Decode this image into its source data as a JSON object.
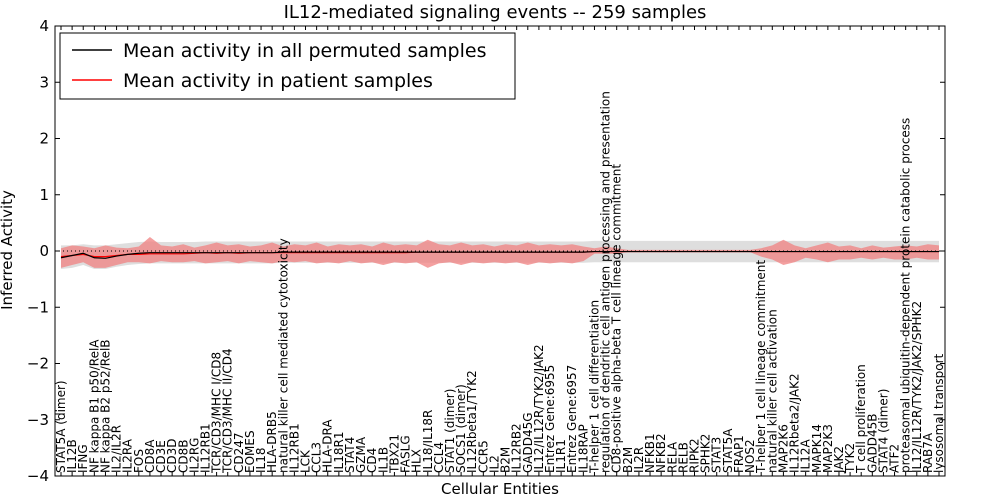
{
  "chart_data": {
    "type": "line",
    "title": "IL12-mediated signaling events -- 259 samples",
    "xlabel": "Cellular Entities",
    "ylabel": "Inferred Activity",
    "ylim": [
      -4,
      4
    ],
    "yticks": [
      -4,
      -3,
      -2,
      -1,
      0,
      1,
      2,
      3,
      4
    ],
    "ytick_labels": [
      "−4",
      "−3",
      "−2",
      "−1",
      "0",
      "1",
      "2",
      "3",
      "4"
    ],
    "legend_position": "top-left",
    "legend": [
      {
        "label": "Mean activity in all permuted samples",
        "color": "#000000"
      },
      {
        "label": "Mean activity in patient samples",
        "color": "#ff0000"
      }
    ],
    "categories": [
      "STAT5A (dimer)",
      "IL12B",
      "IFNG",
      "NF kappa B1 p50/RelA",
      "NF kappa B2 p52/RelB",
      "IL2/IL2R",
      "IL2RA",
      "FOS",
      "CD8A",
      "CD3E",
      "CD3D",
      "CD8B",
      "IL2RG",
      "IL12RB1",
      "TCR/CD3/MHC I/CD8",
      "TCR/CD3/MHC II/CD4",
      "CD247",
      "EOMES",
      "IL18",
      "HLA-DRB5",
      "natural killer cell mediated cytotoxicity",
      "IL12RB1",
      "LCK",
      "CCL3",
      "HLA-DRA",
      "IL18R1",
      "STAT4",
      "GZMA",
      "CD4",
      "IL1B",
      "TBX21",
      "FASLG",
      "HLX",
      "IL18/IL18R",
      "CCL4",
      "STAT1 (dimer)",
      "SOCS1 (dimer)",
      "IL12Rbeta1/TYK2",
      "CCR5",
      "IL2",
      "B2M",
      "IL12RB2",
      "GADD45G",
      "IL12/IL12R/TYK2/JAK2",
      "Entrez Gene:6955",
      "IL1R1",
      "Entrez Gene:6957",
      "IL18RAP",
      "T-helper 1 cell differentiation",
      "regulation of dendritic cell antigen processing and presentation",
      "CD8-positive alpha-beta T cell lineage commitment",
      "B2M",
      "IL2R",
      "NFKB1",
      "NFKB2",
      "RELA",
      "RELB",
      "RIPK2",
      "SPHK2",
      "STAT3",
      "STAT5A",
      "FRAP1",
      "NOS2",
      "T-helper 1 cell lineage commitment",
      "natural killer cell activation",
      "MAP2K6",
      "IL12Rbeta2/JAK2",
      "IL12A",
      "MAPK14",
      "MAP2K3",
      "JAK2",
      "TYK2",
      "T cell proliferation",
      "GADD45B",
      "STAT4 (dimer)",
      "ATF2",
      "proteasomal ubiquitin-dependent protein catabolic process",
      "IL12/IL12R/TYK2/JAK2/SPHK2",
      "RAB7A",
      "lysosomal transport"
    ],
    "series": [
      {
        "name": "Mean activity in all permuted samples",
        "color": "#000000",
        "values": [
          -0.12,
          -0.08,
          -0.04,
          -0.12,
          -0.13,
          -0.09,
          -0.06,
          -0.04,
          -0.03,
          -0.03,
          -0.03,
          -0.03,
          -0.03,
          -0.03,
          -0.03,
          -0.03,
          -0.03,
          -0.03,
          -0.03,
          -0.03,
          -0.02,
          -0.02,
          -0.02,
          -0.02,
          -0.02,
          -0.02,
          -0.02,
          -0.02,
          -0.02,
          -0.02,
          -0.02,
          -0.02,
          -0.02,
          -0.02,
          -0.02,
          -0.02,
          -0.02,
          -0.02,
          -0.02,
          -0.02,
          -0.02,
          -0.02,
          -0.02,
          -0.02,
          -0.02,
          -0.02,
          -0.02,
          -0.02,
          -0.01,
          -0.01,
          -0.01,
          -0.01,
          -0.01,
          -0.01,
          -0.01,
          -0.01,
          -0.01,
          -0.01,
          -0.01,
          -0.01,
          -0.01,
          -0.01,
          -0.01,
          -0.01,
          -0.01,
          -0.01,
          -0.01,
          -0.01,
          -0.01,
          -0.01,
          -0.01,
          -0.01,
          -0.01,
          -0.01,
          -0.01,
          -0.01,
          -0.01,
          -0.01,
          -0.01,
          -0.01
        ],
        "band_upper": [
          0.1,
          0.1,
          0.12,
          0.1,
          0.1,
          0.12,
          0.14,
          0.16,
          0.17,
          0.16,
          0.16,
          0.16,
          0.16,
          0.17,
          0.17,
          0.17,
          0.17,
          0.17,
          0.17,
          0.17,
          0.17,
          0.17,
          0.17,
          0.17,
          0.17,
          0.17,
          0.17,
          0.17,
          0.17,
          0.17,
          0.17,
          0.17,
          0.17,
          0.17,
          0.17,
          0.17,
          0.17,
          0.17,
          0.17,
          0.17,
          0.17,
          0.17,
          0.17,
          0.17,
          0.17,
          0.17,
          0.17,
          0.17,
          0.18,
          0.18,
          0.18,
          0.18,
          0.18,
          0.18,
          0.18,
          0.18,
          0.18,
          0.18,
          0.18,
          0.18,
          0.18,
          0.18,
          0.18,
          0.18,
          0.18,
          0.18,
          0.18,
          0.18,
          0.18,
          0.18,
          0.18,
          0.18,
          0.18,
          0.18,
          0.18,
          0.18,
          0.18,
          0.18,
          0.18,
          0.18
        ],
        "band_lower": [
          -0.32,
          -0.3,
          -0.25,
          -0.32,
          -0.32,
          -0.28,
          -0.25,
          -0.23,
          -0.22,
          -0.22,
          -0.22,
          -0.22,
          -0.22,
          -0.22,
          -0.22,
          -0.22,
          -0.22,
          -0.22,
          -0.22,
          -0.22,
          -0.21,
          -0.21,
          -0.21,
          -0.21,
          -0.21,
          -0.21,
          -0.21,
          -0.21,
          -0.21,
          -0.21,
          -0.21,
          -0.21,
          -0.21,
          -0.21,
          -0.21,
          -0.21,
          -0.21,
          -0.21,
          -0.21,
          -0.21,
          -0.21,
          -0.21,
          -0.21,
          -0.21,
          -0.21,
          -0.21,
          -0.21,
          -0.21,
          -0.2,
          -0.2,
          -0.2,
          -0.2,
          -0.2,
          -0.2,
          -0.2,
          -0.2,
          -0.2,
          -0.2,
          -0.2,
          -0.2,
          -0.2,
          -0.2,
          -0.2,
          -0.2,
          -0.2,
          -0.2,
          -0.2,
          -0.2,
          -0.2,
          -0.2,
          -0.2,
          -0.2,
          -0.2,
          -0.2,
          -0.2,
          -0.2,
          -0.2,
          -0.2,
          -0.2,
          -0.2
        ]
      },
      {
        "name": "Mean activity in patient samples",
        "color": "#ff0000",
        "values": [
          -0.1,
          -0.08,
          -0.06,
          -0.1,
          -0.1,
          -0.08,
          -0.06,
          -0.06,
          -0.05,
          -0.05,
          -0.05,
          -0.05,
          -0.04,
          -0.03,
          -0.04,
          -0.03,
          -0.04,
          -0.03,
          -0.03,
          -0.03,
          -0.03,
          -0.03,
          -0.03,
          -0.03,
          -0.03,
          -0.03,
          -0.03,
          -0.03,
          -0.03,
          -0.03,
          -0.03,
          -0.03,
          -0.02,
          -0.02,
          -0.02,
          -0.02,
          -0.02,
          -0.02,
          -0.02,
          -0.02,
          -0.02,
          -0.02,
          -0.02,
          -0.02,
          -0.02,
          -0.02,
          -0.02,
          -0.02,
          -0.01,
          -0.01,
          -0.01,
          -0.01,
          -0.01,
          -0.01,
          -0.01,
          -0.01,
          -0.01,
          -0.01,
          -0.01,
          -0.01,
          -0.01,
          -0.01,
          -0.01,
          -0.01,
          -0.01,
          -0.01,
          -0.01,
          -0.01,
          -0.01,
          -0.01,
          -0.01,
          -0.01,
          -0.01,
          -0.01,
          -0.01,
          -0.01,
          -0.01,
          -0.01,
          -0.01,
          -0.01
        ],
        "band_upper": [
          0.05,
          0.1,
          0.08,
          0.05,
          0.1,
          0.06,
          0.05,
          0.08,
          0.25,
          0.1,
          0.08,
          0.12,
          0.06,
          0.1,
          0.15,
          0.1,
          0.12,
          0.08,
          0.1,
          0.15,
          0.08,
          0.12,
          0.1,
          0.15,
          0.08,
          0.12,
          0.1,
          0.12,
          0.08,
          0.15,
          0.1,
          0.12,
          0.1,
          0.2,
          0.12,
          0.1,
          0.15,
          0.1,
          0.12,
          0.08,
          0.12,
          0.1,
          0.15,
          0.1,
          0.12,
          0.1,
          0.12,
          0.08,
          0.05,
          0.08,
          0.05,
          0.02,
          0.02,
          0.02,
          0.02,
          0.02,
          0.02,
          0.02,
          0.02,
          0.02,
          0.02,
          0.02,
          0.02,
          0.05,
          0.1,
          0.2,
          0.1,
          0.05,
          0.1,
          0.15,
          0.08,
          0.1,
          0.05,
          0.1,
          0.06,
          0.08,
          0.1,
          0.08,
          0.12,
          0.1
        ],
        "band_lower": [
          -0.3,
          -0.25,
          -0.2,
          -0.3,
          -0.3,
          -0.25,
          -0.2,
          -0.2,
          -0.22,
          -0.18,
          -0.2,
          -0.2,
          -0.18,
          -0.22,
          -0.2,
          -0.18,
          -0.22,
          -0.18,
          -0.2,
          -0.22,
          -0.18,
          -0.2,
          -0.18,
          -0.22,
          -0.2,
          -0.22,
          -0.18,
          -0.22,
          -0.2,
          -0.25,
          -0.2,
          -0.22,
          -0.2,
          -0.3,
          -0.22,
          -0.2,
          -0.25,
          -0.2,
          -0.22,
          -0.2,
          -0.22,
          -0.2,
          -0.25,
          -0.2,
          -0.22,
          -0.2,
          -0.22,
          -0.18,
          -0.05,
          -0.05,
          -0.05,
          -0.02,
          -0.02,
          -0.02,
          -0.02,
          -0.02,
          -0.02,
          -0.02,
          -0.02,
          -0.02,
          -0.02,
          -0.02,
          -0.02,
          -0.1,
          -0.15,
          -0.25,
          -0.2,
          -0.12,
          -0.15,
          -0.2,
          -0.15,
          -0.15,
          -0.12,
          -0.15,
          -0.12,
          -0.15,
          -0.15,
          -0.12,
          -0.15,
          -0.15
        ]
      }
    ]
  },
  "colors": {
    "permuted_band": "#c8c8c8",
    "patient_band": "#f08080",
    "zero_line": "#000000"
  }
}
